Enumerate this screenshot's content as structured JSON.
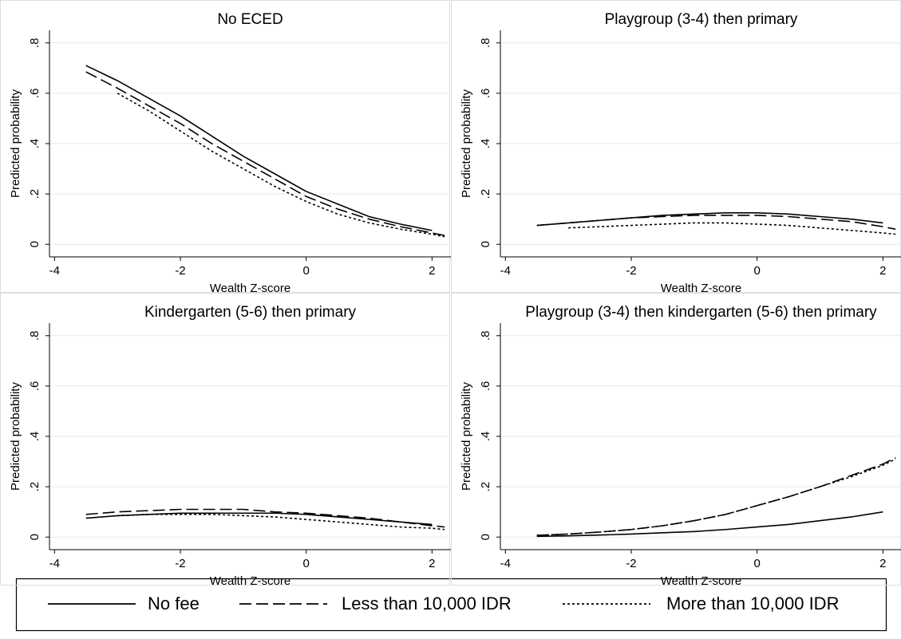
{
  "chart_data": [
    {
      "type": "line",
      "title": "No ECED",
      "xlabel": "Wealth Z-score",
      "ylabel": "Predicted probability",
      "x": [
        -3.5,
        -3,
        -2.5,
        -2,
        -1.5,
        -1,
        -0.5,
        0,
        0.5,
        1,
        1.5,
        2,
        2.2
      ],
      "xlim": [
        -4.08,
        2.3
      ],
      "xticks": [
        -4,
        -2,
        0,
        2
      ],
      "ylim": [
        -0.05,
        0.85
      ],
      "yticks": [
        0,
        {
          "value": 0.2,
          "label": ".2"
        },
        {
          "value": 0.4,
          "label": ".4"
        },
        {
          "value": 0.6,
          "label": ".6"
        },
        {
          "value": 0.8,
          "label": ".8"
        }
      ],
      "grid": true,
      "series": [
        {
          "name": "No fee",
          "color": "#000000",
          "dash": "solid",
          "values": [
            0.71,
            0.65,
            0.58,
            0.51,
            0.43,
            0.35,
            0.28,
            0.21,
            0.16,
            0.11,
            0.08,
            0.055,
            null
          ]
        },
        {
          "name": "Less than 10,000 IDR",
          "color": "#000000",
          "dash": "dash",
          "values": [
            0.685,
            0.62,
            0.55,
            0.48,
            0.4,
            0.33,
            0.26,
            0.19,
            0.14,
            0.1,
            0.07,
            0.045,
            0.035
          ]
        },
        {
          "name": "More than 10,000 IDR",
          "color": "#000000",
          "dash": "dot",
          "values": [
            null,
            0.6,
            0.53,
            0.45,
            0.37,
            0.3,
            0.23,
            0.17,
            0.12,
            0.085,
            0.06,
            0.04,
            0.03
          ]
        }
      ]
    },
    {
      "type": "line",
      "title": "Playgroup (3-4) then primary",
      "xlabel": "Wealth Z-score",
      "ylabel": "Predicted probability",
      "x": [
        -3.5,
        -3,
        -2.5,
        -2,
        -1.5,
        -1,
        -0.5,
        0,
        0.5,
        1,
        1.5,
        2,
        2.2
      ],
      "xlim": [
        -4.08,
        2.3
      ],
      "xticks": [
        -4,
        -2,
        0,
        2
      ],
      "ylim": [
        -0.05,
        0.85
      ],
      "yticks": [
        0,
        {
          "value": 0.2,
          "label": ".2"
        },
        {
          "value": 0.4,
          "label": ".4"
        },
        {
          "value": 0.6,
          "label": ".6"
        },
        {
          "value": 0.8,
          "label": ".8"
        }
      ],
      "grid": true,
      "series": [
        {
          "color": "#000000",
          "dash": "solid",
          "values": [
            0.075,
            0.085,
            0.095,
            0.105,
            0.115,
            0.12,
            0.125,
            0.125,
            0.12,
            0.11,
            0.1,
            0.085,
            null
          ]
        },
        {
          "color": "#000000",
          "dash": "dash",
          "values": [
            0.075,
            0.085,
            0.095,
            0.105,
            0.11,
            0.115,
            0.115,
            0.115,
            0.11,
            0.1,
            0.09,
            0.07,
            0.06
          ]
        },
        {
          "color": "#000000",
          "dash": "dot",
          "values": [
            null,
            0.065,
            0.07,
            0.075,
            0.08,
            0.085,
            0.085,
            0.08,
            0.075,
            0.065,
            0.055,
            0.045,
            0.04
          ]
        }
      ]
    },
    {
      "type": "line",
      "title": "Kindergarten (5-6) then primary",
      "xlabel": "Wealth Z-score",
      "ylabel": "Predicted probability",
      "x": [
        -3.5,
        -3,
        -2.5,
        -2,
        -1.5,
        -1,
        -0.5,
        0,
        0.5,
        1,
        1.5,
        2,
        2.2
      ],
      "xlim": [
        -4.08,
        2.3
      ],
      "xticks": [
        -4,
        -2,
        0,
        2
      ],
      "ylim": [
        -0.05,
        0.85
      ],
      "yticks": [
        0,
        {
          "value": 0.2,
          "label": ".2"
        },
        {
          "value": 0.4,
          "label": ".4"
        },
        {
          "value": 0.6,
          "label": ".6"
        },
        {
          "value": 0.8,
          "label": ".8"
        }
      ],
      "grid": true,
      "series": [
        {
          "color": "#000000",
          "dash": "solid",
          "values": [
            0.075,
            0.085,
            0.09,
            0.095,
            0.095,
            0.095,
            0.095,
            0.09,
            0.08,
            0.07,
            0.06,
            0.05,
            null
          ]
        },
        {
          "color": "#000000",
          "dash": "dash",
          "values": [
            0.09,
            0.1,
            0.105,
            0.11,
            0.11,
            0.11,
            0.1,
            0.095,
            0.085,
            0.075,
            0.06,
            0.045,
            0.04
          ]
        },
        {
          "color": "#000000",
          "dash": "dot",
          "values": [
            null,
            0.085,
            0.09,
            0.09,
            0.09,
            0.085,
            0.08,
            0.07,
            0.06,
            0.05,
            0.04,
            0.035,
            0.03
          ]
        }
      ]
    },
    {
      "type": "line",
      "title": "Playgroup (3-4) then kindergarten (5-6) then primary",
      "xlabel": "Wealth Z-score",
      "ylabel": "Predicted probability",
      "x": [
        -3.5,
        -3,
        -2.5,
        -2,
        -1.5,
        -1,
        -0.5,
        0,
        0.5,
        1,
        1.5,
        2,
        2.2
      ],
      "xlim": [
        -4.08,
        2.3
      ],
      "xticks": [
        -4,
        -2,
        0,
        2
      ],
      "ylim": [
        -0.05,
        0.85
      ],
      "yticks": [
        0,
        {
          "value": 0.2,
          "label": ".2"
        },
        {
          "value": 0.4,
          "label": ".4"
        },
        {
          "value": 0.6,
          "label": ".6"
        },
        {
          "value": 0.8,
          "label": ".8"
        }
      ],
      "grid": true,
      "series": [
        {
          "color": "#000000",
          "dash": "solid",
          "values": [
            0.003,
            0.005,
            0.008,
            0.012,
            0.017,
            0.022,
            0.03,
            0.04,
            0.05,
            0.065,
            0.08,
            0.1,
            null
          ]
        },
        {
          "color": "#000000",
          "dash": "dash",
          "values": [
            0.007,
            0.012,
            0.02,
            0.03,
            0.045,
            0.065,
            0.09,
            0.125,
            0.16,
            0.2,
            0.245,
            0.29,
            0.315
          ]
        },
        {
          "color": "#000000",
          "dash": "dot",
          "values": [
            0.007,
            0.012,
            0.02,
            0.03,
            0.045,
            0.065,
            0.09,
            0.125,
            0.16,
            0.2,
            0.24,
            0.285,
            0.31
          ]
        }
      ]
    }
  ]
}
